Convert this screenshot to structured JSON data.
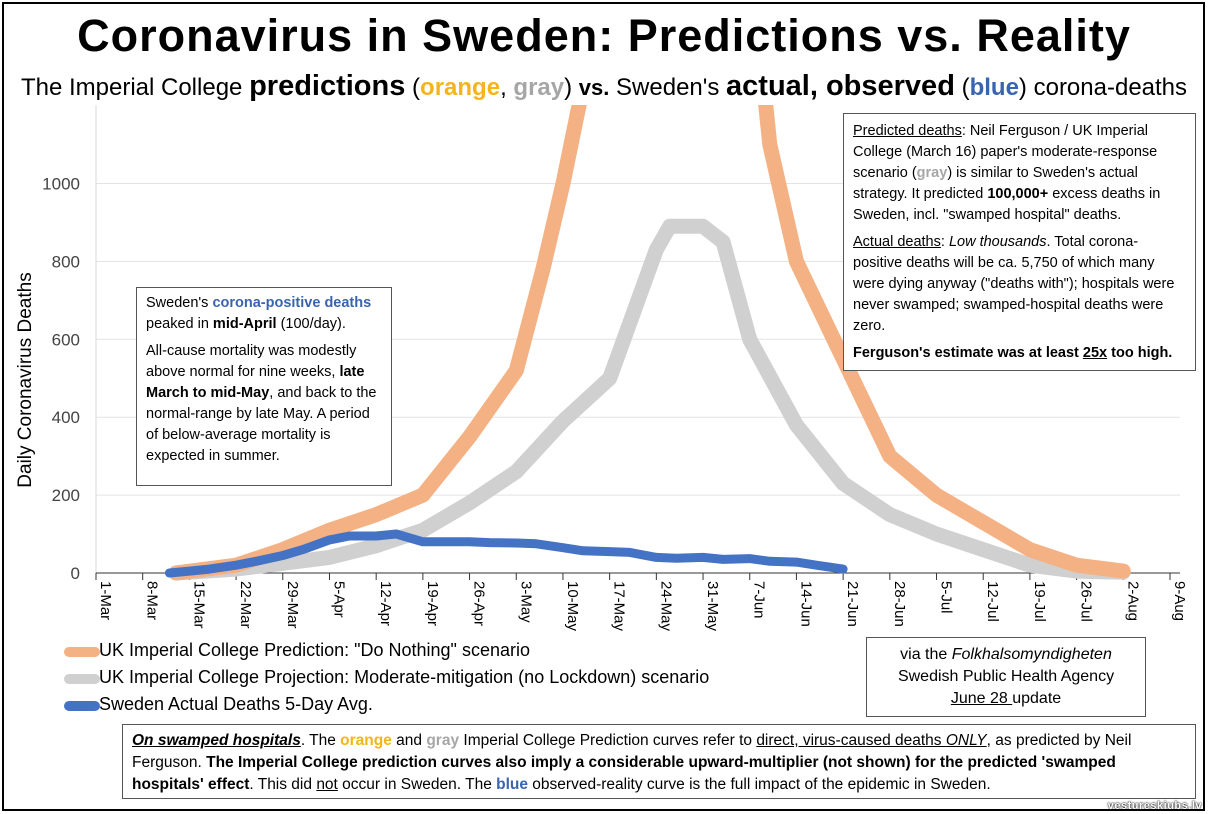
{
  "title": "Coronavirus in Sweden: Predictions vs. Reality",
  "subtitle": {
    "part1": "The Imperial College",
    "predictions": "predictions",
    "paren_open": " (",
    "orange": "orange",
    "comma": ", ",
    "gray": "gray",
    "paren_close": ") ",
    "vs": "vs.",
    "part2": " Sweden's ",
    "actual": "actual, observed",
    "paren_open2": " (",
    "blue": "blue",
    "paren_close2": ") ",
    "part3": "corona-deaths"
  },
  "colors": {
    "orange": "#f4b183",
    "gray": "#d0d0d0",
    "blue": "#4472c4",
    "orange_text": "#f5b41b",
    "gray_text": "#a6a6a6",
    "blue_text": "#3a64b0"
  },
  "left_box": {
    "p1_a": "Sweden's ",
    "p1_b": "corona-positive deaths",
    "p1_c": " peaked in ",
    "p1_d": "mid-April",
    "p1_e": " (100/day).",
    "p2_a": "All-cause mortality was modestly above normal for nine weeks, ",
    "p2_b": "late March to mid-May",
    "p2_c": ", and back to the normal-range by late May. A period of below-average mortality is expected  in summer."
  },
  "right_box": {
    "p1_a": "Predicted deaths",
    "p1_b": ": Neil Ferguson / UK Imperial College (March 16) paper's moderate-response scenario (",
    "p1_c": "gray",
    "p1_d": ") is similar to Sweden's actual strategy. It predicted ",
    "p1_e": "100,000+",
    "p1_f": " excess deaths in Sweden, incl. \"swamped hospital\" deaths.",
    "p2_a": "Actual deaths",
    "p2_b": ": ",
    "p2_c": "Low thousands",
    "p2_d": ". Total corona-positive deaths will be ca. 5,750 of which many were dying anyway (\"deaths with\"); hospitals were never swamped; swamped-hospital deaths were zero.",
    "p3_a": "Ferguson's estimate was at least ",
    "p3_b": "25x",
    "p3_c": " too high."
  },
  "legend": [
    {
      "label": "UK Imperial College Prediction: \"Do Nothing\" scenario",
      "color": "#f4b183"
    },
    {
      "label": "UK Imperial College Projection: Moderate-mitigation (no Lockdown) scenario",
      "color": "#d0d0d0"
    },
    {
      "label": "Sweden Actual Deaths 5-Day Avg.",
      "color": "#4472c4"
    }
  ],
  "source_box": {
    "l1a": "via the ",
    "l1b": "Folkhalsomyndigheten",
    "l2": "Swedish Public Health Agency",
    "l3a": "June 28 ",
    "l3b": "update"
  },
  "bottom_box": {
    "a": "On swamped hospitals",
    "b": ". The ",
    "c": "orange",
    "d": " and ",
    "e": "gray",
    "f": " Imperial College Prediction curves refer to ",
    "g": "direct, virus-caused deaths ",
    "h": "ONLY",
    "i": ", as predicted by Neil Ferguson. ",
    "j": "The Imperial College prediction curves also imply a considerable upward-multiplier (not shown) for the predicted 'swamped hospitals' effect",
    "k": ". This did ",
    "l": "not",
    "m": " occur in Sweden. The ",
    "n": "blue",
    "o": " observed-reality curve is the full impact of the epidemic in Sweden."
  },
  "credit": "vestureskiubs.lv",
  "chart_data": {
    "type": "line",
    "ylabel": "Daily  Coronavirus Deaths",
    "xlabel": "",
    "ylim": [
      0,
      1150
    ],
    "yticks": [
      0,
      200,
      400,
      600,
      800,
      1000
    ],
    "xlim": [
      0,
      161
    ],
    "xtick_labels": [
      "1-Mar",
      "8-Mar",
      "15-Mar",
      "22-Mar",
      "29-Mar",
      "5-Apr",
      "12-Apr",
      "19-Apr",
      "26-Apr",
      "3-May",
      "10-May",
      "17-May",
      "24-May",
      "31-May",
      "7-Jun",
      "14-Jun",
      "21-Jun",
      "28-Jun",
      "5-Jul",
      "12-Jul",
      "19-Jul",
      "26-Jul",
      "2-Aug",
      "9-Aug"
    ],
    "xtick_days": [
      0,
      7,
      14,
      21,
      28,
      35,
      42,
      49,
      56,
      63,
      70,
      77,
      84,
      91,
      98,
      105,
      112,
      119,
      126,
      133,
      140,
      147,
      154,
      161
    ],
    "series": [
      {
        "name": "UK Imperial College Prediction: \"Do Nothing\" scenario",
        "color": "#f4b183",
        "x": [
          12,
          21,
          28,
          35,
          42,
          49,
          56,
          63,
          67,
          70,
          73,
          77,
          98,
          101,
          105,
          112,
          119,
          126,
          133,
          140,
          147,
          154
        ],
        "y": [
          0,
          20,
          60,
          110,
          150,
          200,
          350,
          520,
          780,
          1000,
          1250,
          1600,
          1600,
          1100,
          800,
          550,
          300,
          200,
          130,
          60,
          20,
          5
        ]
      },
      {
        "name": "UK Imperial College Projection: Moderate-mitigation (no Lockdown) scenario",
        "color": "#d0d0d0",
        "x": [
          12,
          21,
          28,
          35,
          42,
          49,
          56,
          63,
          70,
          77,
          84,
          86,
          91,
          94,
          98,
          105,
          112,
          119,
          126,
          133,
          140,
          147,
          154
        ],
        "y": [
          0,
          10,
          25,
          40,
          70,
          110,
          180,
          260,
          390,
          500,
          830,
          890,
          890,
          850,
          600,
          380,
          230,
          150,
          100,
          60,
          20,
          5,
          2
        ]
      },
      {
        "name": "Sweden Actual Deaths 5-Day Avg.",
        "color": "#4472c4",
        "x": [
          11,
          14,
          17,
          21,
          24,
          28,
          31,
          35,
          38,
          42,
          45,
          49,
          52,
          56,
          59,
          63,
          66,
          70,
          73,
          77,
          80,
          84,
          87,
          91,
          94,
          98,
          101,
          105,
          108,
          112
        ],
        "y": [
          0,
          5,
          10,
          20,
          30,
          45,
          60,
          85,
          95,
          95,
          100,
          80,
          80,
          80,
          78,
          77,
          75,
          65,
          57,
          55,
          53,
          40,
          38,
          40,
          35,
          37,
          30,
          28,
          20,
          10
        ]
      }
    ]
  }
}
